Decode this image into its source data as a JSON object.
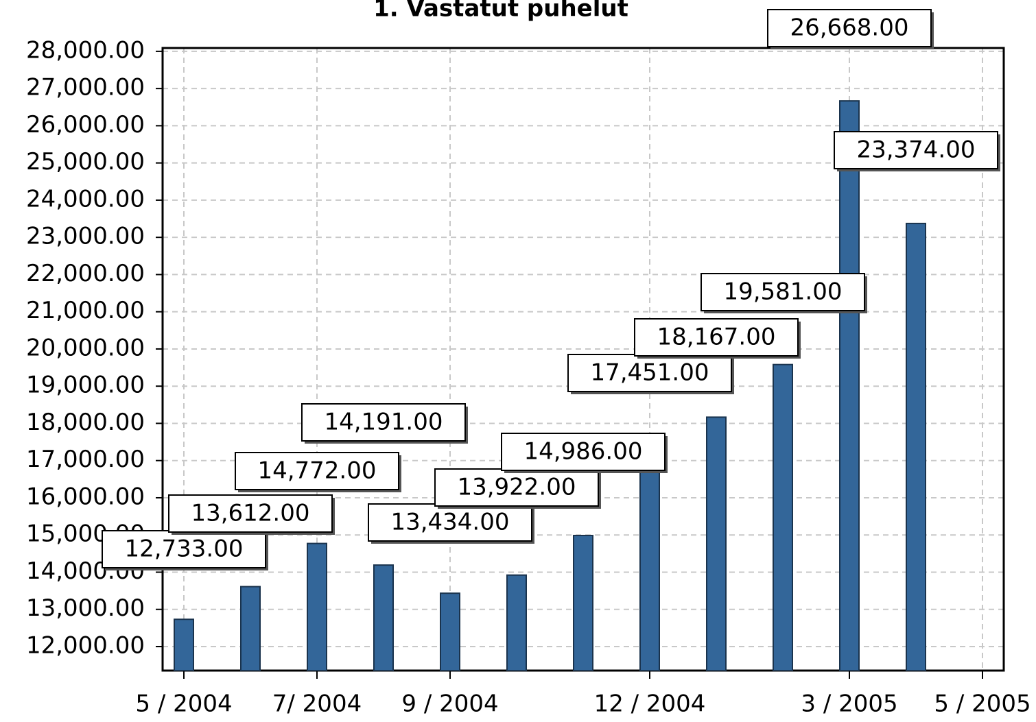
{
  "chart_data": {
    "type": "bar",
    "title": "1. Vastatut puhelut",
    "categories": [
      "5 / 2004",
      null,
      "7/ 2004",
      null,
      "9 / 2004",
      null,
      null,
      "12 / 2004",
      null,
      null,
      "3 / 2005",
      null,
      "5 / 2005"
    ],
    "values": [
      12733,
      13612,
      14772,
      14191,
      13434,
      13922,
      14986,
      17451,
      18167,
      19581,
      26668,
      23374,
      null
    ],
    "value_labels": [
      "12,733.00",
      "13,612.00",
      "14,772.00",
      "14,191.00",
      "13,434.00",
      "13,922.00",
      "14,986.00",
      "17,451.00",
      "18,167.00",
      "19,581.00",
      "26,668.00",
      "23,374.00",
      null
    ],
    "color": "#336699",
    "ylim": [
      11355,
      28090
    ],
    "yticks": [
      {
        "value": 12000,
        "label": "12,000.00"
      },
      {
        "value": 13000,
        "label": "13,000.00"
      },
      {
        "value": 14000,
        "label": "14,000.00"
      },
      {
        "value": 15000,
        "label": "15,000.00"
      },
      {
        "value": 16000,
        "label": "16,000.00"
      },
      {
        "value": 17000,
        "label": "17,000.00"
      },
      {
        "value": 18000,
        "label": "18,000.00"
      },
      {
        "value": 19000,
        "label": "19,000.00"
      },
      {
        "value": 20000,
        "label": "20,000.00"
      },
      {
        "value": 21000,
        "label": "21,000.00"
      },
      {
        "value": 22000,
        "label": "22,000.00"
      },
      {
        "value": 23000,
        "label": "23,000.00"
      },
      {
        "value": 24000,
        "label": "24,000.00"
      },
      {
        "value": 25000,
        "label": "25,000.00"
      },
      {
        "value": 26000,
        "label": "26,000.00"
      },
      {
        "value": 27000,
        "label": "27,000.00"
      },
      {
        "value": 28000,
        "label": "28,000.00"
      }
    ],
    "grid": true
  }
}
